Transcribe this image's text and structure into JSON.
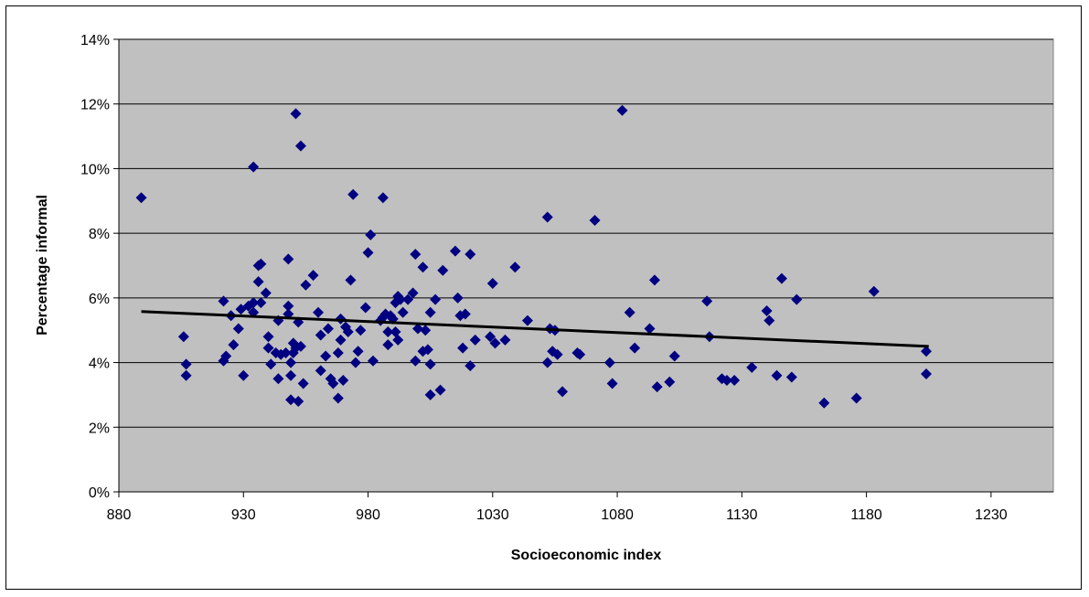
{
  "chart_data": {
    "type": "scatter",
    "title": "",
    "xlabel": "Socioeconomic index",
    "ylabel": "Percentage informal",
    "xlim": [
      880,
      1255
    ],
    "ylim": [
      0,
      14
    ],
    "x_ticks": [
      "880",
      "930",
      "980",
      "1030",
      "1080",
      "1130",
      "1180",
      "1230"
    ],
    "y_ticks": [
      "0%",
      "2%",
      "4%",
      "6%",
      "8%",
      "10%",
      "12%",
      "14%"
    ],
    "grid": "horizontal",
    "legend": "none",
    "colors": {
      "plot_area": "#c0c0c0",
      "marker": "#000080",
      "trendline": "#000000",
      "gridline": "#000000"
    },
    "trendline": {
      "type": "linear",
      "x": [
        889,
        1205
      ],
      "y": [
        5.58,
        4.5
      ]
    },
    "series": [
      {
        "values": [
          [
            889,
            9.1
          ],
          [
            906,
            4.8
          ],
          [
            907,
            3.95
          ],
          [
            907,
            3.6
          ],
          [
            922,
            5.9
          ],
          [
            922,
            4.05
          ],
          [
            923,
            4.2
          ],
          [
            925,
            5.45
          ],
          [
            926,
            4.55
          ],
          [
            928,
            5.05
          ],
          [
            929,
            5.65
          ],
          [
            930,
            3.6
          ],
          [
            932,
            5.75
          ],
          [
            934,
            10.05
          ],
          [
            934,
            5.85
          ],
          [
            934,
            5.55
          ],
          [
            936,
            7.0
          ],
          [
            936,
            6.5
          ],
          [
            937,
            7.05
          ],
          [
            937,
            5.85
          ],
          [
            939,
            6.15
          ],
          [
            940,
            4.8
          ],
          [
            940,
            4.45
          ],
          [
            941,
            3.95
          ],
          [
            943,
            4.3
          ],
          [
            944,
            5.3
          ],
          [
            944,
            3.5
          ],
          [
            945,
            4.25
          ],
          [
            947,
            4.3
          ],
          [
            948,
            5.75
          ],
          [
            948,
            5.5
          ],
          [
            948,
            7.2
          ],
          [
            949,
            4.0
          ],
          [
            949,
            3.6
          ],
          [
            949,
            2.85
          ],
          [
            950,
            4.6
          ],
          [
            950,
            4.3
          ],
          [
            951,
            11.7
          ],
          [
            951,
            4.45
          ],
          [
            952,
            5.25
          ],
          [
            952,
            2.8
          ],
          [
            953,
            10.7
          ],
          [
            953,
            4.5
          ],
          [
            954,
            3.35
          ],
          [
            955,
            6.4
          ],
          [
            958,
            6.7
          ],
          [
            960,
            5.55
          ],
          [
            961,
            4.85
          ],
          [
            961,
            3.75
          ],
          [
            963,
            4.2
          ],
          [
            964,
            5.05
          ],
          [
            965,
            3.5
          ],
          [
            966,
            3.35
          ],
          [
            968,
            4.3
          ],
          [
            968,
            2.9
          ],
          [
            969,
            5.35
          ],
          [
            969,
            4.7
          ],
          [
            970,
            3.45
          ],
          [
            971,
            5.1
          ],
          [
            972,
            4.95
          ],
          [
            973,
            6.55
          ],
          [
            974,
            9.2
          ],
          [
            975,
            4.0
          ],
          [
            976,
            4.35
          ],
          [
            977,
            5.0
          ],
          [
            979,
            5.7
          ],
          [
            980,
            7.4
          ],
          [
            981,
            7.95
          ],
          [
            982,
            4.05
          ],
          [
            985,
            5.3
          ],
          [
            986,
            9.1
          ],
          [
            986,
            5.4
          ],
          [
            987,
            5.5
          ],
          [
            988,
            4.55
          ],
          [
            988,
            4.95
          ],
          [
            989,
            5.45
          ],
          [
            990,
            5.35
          ],
          [
            991,
            5.85
          ],
          [
            991,
            4.95
          ],
          [
            992,
            6.05
          ],
          [
            992,
            4.7
          ],
          [
            993,
            5.95
          ],
          [
            994,
            5.55
          ],
          [
            996,
            5.95
          ],
          [
            998,
            6.15
          ],
          [
            999,
            7.35
          ],
          [
            999,
            4.05
          ],
          [
            1000,
            5.05
          ],
          [
            1002,
            6.95
          ],
          [
            1002,
            4.35
          ],
          [
            1003,
            5.0
          ],
          [
            1004,
            4.4
          ],
          [
            1005,
            3.95
          ],
          [
            1005,
            5.55
          ],
          [
            1005,
            3.0
          ],
          [
            1007,
            5.95
          ],
          [
            1009,
            3.15
          ],
          [
            1010,
            6.85
          ],
          [
            1015,
            7.45
          ],
          [
            1016,
            6.0
          ],
          [
            1017,
            5.45
          ],
          [
            1018,
            4.45
          ],
          [
            1019,
            5.5
          ],
          [
            1021,
            7.35
          ],
          [
            1021,
            3.9
          ],
          [
            1023,
            4.7
          ],
          [
            1029,
            4.8
          ],
          [
            1030,
            6.45
          ],
          [
            1031,
            4.6
          ],
          [
            1035,
            4.7
          ],
          [
            1039,
            6.95
          ],
          [
            1044,
            5.3
          ],
          [
            1052,
            8.5
          ],
          [
            1052,
            4.0
          ],
          [
            1053,
            5.05
          ],
          [
            1054,
            4.35
          ],
          [
            1055,
            5.0
          ],
          [
            1056,
            4.25
          ],
          [
            1058,
            3.1
          ],
          [
            1064,
            4.3
          ],
          [
            1065,
            4.25
          ],
          [
            1071,
            8.4
          ],
          [
            1077,
            4.0
          ],
          [
            1078,
            3.35
          ],
          [
            1082,
            11.8
          ],
          [
            1085,
            5.55
          ],
          [
            1087,
            4.45
          ],
          [
            1093,
            5.05
          ],
          [
            1095,
            6.55
          ],
          [
            1096,
            3.25
          ],
          [
            1101,
            3.4
          ],
          [
            1103,
            4.2
          ],
          [
            1116,
            5.9
          ],
          [
            1117,
            4.8
          ],
          [
            1122,
            3.5
          ],
          [
            1124,
            3.45
          ],
          [
            1127,
            3.45
          ],
          [
            1134,
            3.85
          ],
          [
            1140,
            5.6
          ],
          [
            1141,
            5.3
          ],
          [
            1144,
            3.6
          ],
          [
            1146,
            6.6
          ],
          [
            1150,
            3.55
          ],
          [
            1152,
            5.95
          ],
          [
            1163,
            2.75
          ],
          [
            1176,
            2.9
          ],
          [
            1183,
            6.2
          ],
          [
            1204,
            4.35
          ],
          [
            1204,
            3.65
          ]
        ]
      }
    ]
  }
}
